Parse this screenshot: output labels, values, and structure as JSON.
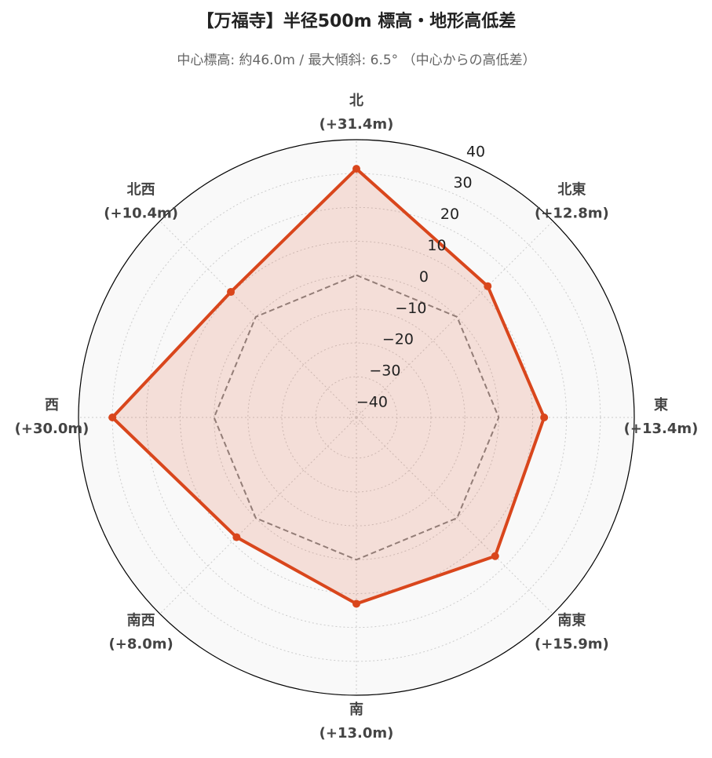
{
  "chart_data": {
    "type": "radar",
    "title": "【万福寺】半径500m 標高・地形高低差",
    "subtitle": "中心標高: 約46.0m / 最大傾斜: 6.5° （中心からの高低差）",
    "categories": [
      "北",
      "北東",
      "東",
      "南東",
      "南",
      "南西",
      "西",
      "北西"
    ],
    "values": [
      31.4,
      12.8,
      13.4,
      15.9,
      13.0,
      8.0,
      30.0,
      10.4
    ],
    "value_labels": [
      "(+31.4m)",
      "(+12.8m)",
      "(+13.4m)",
      "(+15.9m)",
      "(+13.0m)",
      "(+8.0m)",
      "(+30.0m)",
      "(+10.4m)"
    ],
    "color": "#d9461c",
    "reference_value": 0,
    "ylim": [
      -42,
      40
    ],
    "yticks": [
      {
        "value": -40,
        "label": "−40"
      },
      {
        "value": -30,
        "label": "−30"
      },
      {
        "value": -20,
        "label": "−20"
      },
      {
        "value": -10,
        "label": "−10"
      },
      0,
      10,
      20,
      30,
      40
    ],
    "grid": true
  }
}
